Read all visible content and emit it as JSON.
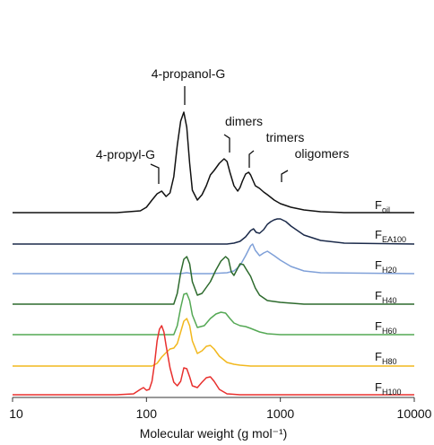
{
  "chart_data": {
    "type": "line",
    "xscale": "log",
    "xlim": [
      10,
      10000
    ],
    "xticks": [
      "10",
      "100",
      "1000",
      "10000"
    ],
    "xlabel": "Molecular weight (g mol⁻¹)",
    "stacked_offset": true,
    "series": [
      {
        "name": "F",
        "sub": "oil",
        "color": "#111111",
        "x": [
          60,
          90,
          100,
          110,
          120,
          130,
          140,
          150,
          160,
          170,
          180,
          190,
          200,
          210,
          220,
          240,
          260,
          280,
          300,
          320,
          350,
          380,
          400,
          420,
          450,
          480,
          500,
          520,
          550,
          580,
          600,
          650,
          700,
          750,
          800,
          900,
          1000,
          1200,
          1500,
          2000,
          3000,
          10000
        ],
        "y": [
          0,
          2,
          6,
          14,
          21,
          24,
          18,
          22,
          40,
          75,
          102,
          112,
          95,
          55,
          25,
          14,
          20,
          30,
          42,
          47,
          55,
          60,
          57,
          45,
          30,
          24,
          28,
          35,
          43,
          45,
          42,
          30,
          27,
          23,
          20,
          14,
          10,
          6,
          3,
          1,
          0,
          0
        ]
      },
      {
        "name": "F",
        "sub": "EA100",
        "color": "#1b2a4a",
        "x": [
          60,
          400,
          450,
          500,
          550,
          600,
          630,
          660,
          700,
          750,
          800,
          850,
          900,
          950,
          1000,
          1100,
          1200,
          1500,
          2000,
          3000,
          10000
        ],
        "y": [
          0,
          0,
          1,
          3,
          8,
          15,
          17,
          13,
          12,
          16,
          22,
          25,
          27,
          28,
          28,
          25,
          20,
          10,
          4,
          1,
          0
        ]
      },
      {
        "name": "F",
        "sub": "H20",
        "color": "#7fa0d8",
        "x": [
          60,
          180,
          200,
          220,
          300,
          400,
          450,
          500,
          550,
          600,
          620,
          650,
          700,
          750,
          800,
          900,
          1000,
          1200,
          1500,
          2000,
          10000
        ],
        "y": [
          0,
          0,
          1,
          0,
          0,
          1,
          3,
          9,
          20,
          31,
          33,
          26,
          20,
          23,
          25,
          20,
          15,
          8,
          3,
          1,
          0
        ]
      },
      {
        "name": "F",
        "sub": "H40",
        "color": "#2d6a2d",
        "x": [
          60,
          160,
          170,
          180,
          190,
          200,
          210,
          220,
          240,
          260,
          300,
          330,
          360,
          390,
          410,
          430,
          450,
          480,
          500,
          530,
          560,
          600,
          650,
          700,
          800,
          1000,
          1500,
          10000
        ],
        "y": [
          0,
          0,
          12,
          35,
          50,
          53,
          45,
          25,
          10,
          12,
          25,
          38,
          48,
          53,
          50,
          36,
          32,
          40,
          45,
          44,
          38,
          31,
          18,
          10,
          4,
          2,
          0,
          0
        ]
      },
      {
        "name": "F",
        "sub": "H60",
        "color": "#54a854",
        "x": [
          60,
          160,
          170,
          180,
          190,
          200,
          210,
          220,
          240,
          270,
          300,
          330,
          360,
          390,
          420,
          450,
          500,
          550,
          600,
          700,
          800,
          1000,
          10000
        ],
        "y": [
          0,
          0,
          10,
          30,
          45,
          46,
          38,
          22,
          8,
          10,
          18,
          23,
          25,
          24,
          18,
          13,
          10,
          9,
          7,
          3,
          1,
          0,
          0
        ]
      },
      {
        "name": "F",
        "sub": "H80",
        "color": "#f2b81e",
        "x": [
          60,
          110,
          120,
          130,
          140,
          150,
          160,
          170,
          180,
          190,
          200,
          210,
          220,
          240,
          260,
          280,
          300,
          320,
          350,
          400,
          450,
          500,
          600,
          700,
          10000
        ],
        "y": [
          0,
          0,
          3,
          10,
          15,
          19,
          20,
          25,
          38,
          50,
          53,
          45,
          28,
          14,
          17,
          22,
          23,
          19,
          11,
          4,
          2,
          1,
          0,
          0,
          0
        ]
      },
      {
        "name": "F",
        "sub": "H100",
        "color": "#e8302e",
        "x": [
          60,
          80,
          90,
          95,
          100,
          105,
          110,
          115,
          120,
          125,
          130,
          135,
          140,
          150,
          160,
          170,
          180,
          190,
          200,
          210,
          220,
          240,
          260,
          280,
          300,
          320,
          350,
          400,
          500,
          10000
        ],
        "y": [
          0,
          1,
          6,
          8,
          5,
          6,
          15,
          35,
          60,
          73,
          77,
          70,
          55,
          30,
          14,
          10,
          15,
          30,
          29,
          20,
          10,
          8,
          14,
          19,
          20,
          15,
          6,
          1,
          0,
          0
        ]
      }
    ],
    "annotations": [
      {
        "text": "4-propyl-G",
        "x": 130
      },
      {
        "text": "4-propanol-G",
        "x": 190
      },
      {
        "text": "dimers",
        "x": 410
      },
      {
        "text": "trimers",
        "x": 570
      },
      {
        "text": "oligomers",
        "x": 920
      }
    ]
  }
}
